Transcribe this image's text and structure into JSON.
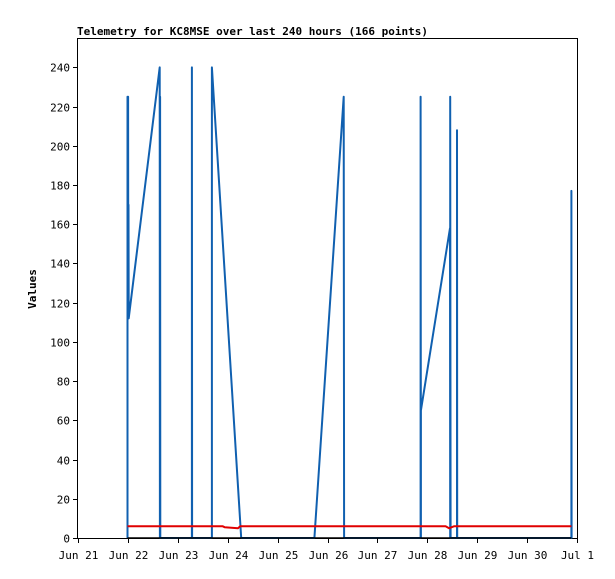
{
  "chart_data": {
    "type": "line",
    "title": "Telemetry for KC8MSE over last 240 hours (166 points)",
    "ylabel": "Values",
    "xlabel": "",
    "ylim": [
      0,
      255
    ],
    "y_ticks": [
      0,
      20,
      40,
      60,
      80,
      100,
      120,
      140,
      160,
      180,
      200,
      220,
      240
    ],
    "x_range_hours": [
      0,
      240
    ],
    "x_ticks": [
      {
        "label": "Jun 21",
        "h": 0
      },
      {
        "label": "Jun 22",
        "h": 24
      },
      {
        "label": "Jun 23",
        "h": 48
      },
      {
        "label": "Jun 24",
        "h": 72
      },
      {
        "label": "Jun 25",
        "h": 96
      },
      {
        "label": "Jun 26",
        "h": 120
      },
      {
        "label": "Jun 27",
        "h": 144
      },
      {
        "label": "Jun 28",
        "h": 168
      },
      {
        "label": "Jun 29",
        "h": 192
      },
      {
        "label": "Jun 30",
        "h": 216
      },
      {
        "label": "Jul 1",
        "h": 240
      }
    ],
    "grid": false,
    "series": [
      {
        "color": "#1060b0",
        "points": [
          [
            23.8,
            0
          ],
          [
            23.8,
            225
          ],
          [
            24.0,
            112
          ],
          [
            24.1,
            225
          ],
          [
            24.2,
            112
          ],
          [
            24.3,
            170
          ],
          [
            24.4,
            112
          ],
          [
            39.3,
            240
          ],
          [
            39.4,
            0
          ],
          [
            39.5,
            225
          ],
          [
            39.6,
            0
          ],
          [
            54.8,
            0
          ],
          [
            54.8,
            240
          ],
          [
            54.9,
            0
          ],
          [
            64.4,
            0
          ],
          [
            64.4,
            240
          ],
          [
            78.5,
            0
          ],
          [
            113.7,
            0
          ],
          [
            127.8,
            225
          ],
          [
            128.0,
            0
          ],
          [
            164.8,
            0
          ],
          [
            164.8,
            225
          ],
          [
            164.9,
            0
          ],
          [
            164.9,
            65
          ],
          [
            178.9,
            158
          ],
          [
            179.0,
            0
          ],
          [
            179.0,
            225
          ],
          [
            179.2,
            0
          ],
          [
            182.3,
            0
          ],
          [
            182.3,
            208
          ],
          [
            182.4,
            0
          ],
          [
            237.3,
            0
          ],
          [
            237.3,
            177
          ],
          [
            237.4,
            0
          ]
        ]
      },
      {
        "color": "#e00000",
        "points": [
          [
            23.8,
            6
          ],
          [
            69.5,
            6
          ],
          [
            70.5,
            5.5
          ],
          [
            77.0,
            5
          ],
          [
            78.0,
            6
          ],
          [
            176.8,
            6
          ],
          [
            178.5,
            5
          ],
          [
            181.0,
            6
          ],
          [
            237.3,
            6
          ]
        ]
      },
      {
        "color": "#000000",
        "points": [
          [
            23.8,
            0
          ],
          [
            237.3,
            0
          ]
        ]
      }
    ]
  }
}
